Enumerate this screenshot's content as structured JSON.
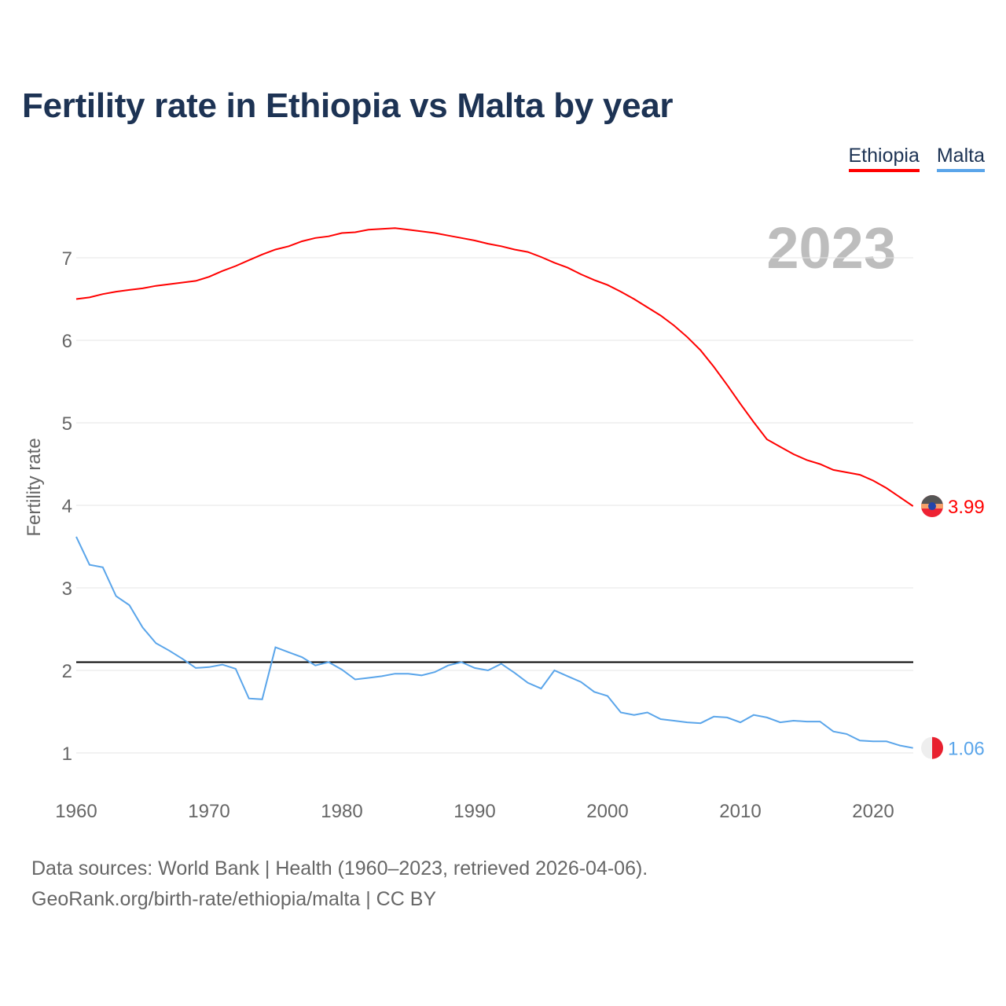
{
  "chart_data": {
    "type": "line",
    "title": "Fertility rate in Ethiopia vs Malta by year",
    "xlabel": "",
    "ylabel": "Fertility rate",
    "xlim": [
      1960,
      2023
    ],
    "ylim": [
      0.5,
      7.6
    ],
    "x_ticks": [
      1960,
      1970,
      1980,
      1990,
      2000,
      2010,
      2020
    ],
    "y_ticks": [
      1,
      2,
      3,
      4,
      5,
      6,
      7
    ],
    "grid": true,
    "legend_placement": "top-right",
    "current_year_label": "2023",
    "reference_line": {
      "value": 2.1,
      "color": "#000000"
    },
    "x": [
      1960,
      1961,
      1962,
      1963,
      1964,
      1965,
      1966,
      1967,
      1968,
      1969,
      1970,
      1971,
      1972,
      1973,
      1974,
      1975,
      1976,
      1977,
      1978,
      1979,
      1980,
      1981,
      1982,
      1983,
      1984,
      1985,
      1986,
      1987,
      1988,
      1989,
      1990,
      1991,
      1992,
      1993,
      1994,
      1995,
      1996,
      1997,
      1998,
      1999,
      2000,
      2001,
      2002,
      2003,
      2004,
      2005,
      2006,
      2007,
      2008,
      2009,
      2010,
      2011,
      2012,
      2013,
      2014,
      2015,
      2016,
      2017,
      2018,
      2019,
      2020,
      2021,
      2022,
      2023
    ],
    "series": [
      {
        "name": "Ethiopia",
        "color": "#ff0000",
        "end_label": "3.99",
        "values": [
          6.5,
          6.52,
          6.56,
          6.59,
          6.61,
          6.63,
          6.66,
          6.68,
          6.7,
          6.72,
          6.77,
          6.84,
          6.9,
          6.97,
          7.04,
          7.1,
          7.14,
          7.2,
          7.24,
          7.26,
          7.3,
          7.31,
          7.34,
          7.35,
          7.36,
          7.34,
          7.32,
          7.3,
          7.27,
          7.24,
          7.21,
          7.17,
          7.14,
          7.1,
          7.07,
          7.01,
          6.94,
          6.88,
          6.8,
          6.73,
          6.67,
          6.59,
          6.5,
          6.4,
          6.3,
          6.18,
          6.04,
          5.88,
          5.68,
          5.46,
          5.23,
          5.01,
          4.8,
          4.71,
          4.62,
          4.55,
          4.5,
          4.43,
          4.4,
          4.37,
          4.3,
          4.21,
          4.1,
          3.99
        ]
      },
      {
        "name": "Malta",
        "color": "#5aa5ea",
        "end_label": "1.06",
        "values": [
          3.62,
          3.28,
          3.25,
          2.9,
          2.79,
          2.52,
          2.33,
          2.24,
          2.14,
          2.03,
          2.04,
          2.07,
          2.02,
          1.66,
          1.65,
          2.28,
          2.22,
          2.16,
          2.06,
          2.1,
          2.01,
          1.89,
          1.91,
          1.93,
          1.96,
          1.96,
          1.94,
          1.98,
          2.06,
          2.1,
          2.03,
          2.0,
          2.08,
          1.97,
          1.85,
          1.78,
          2.0,
          1.93,
          1.86,
          1.74,
          1.69,
          1.49,
          1.46,
          1.49,
          1.41,
          1.39,
          1.37,
          1.36,
          1.44,
          1.43,
          1.37,
          1.46,
          1.43,
          1.37,
          1.39,
          1.38,
          1.38,
          1.26,
          1.23,
          1.15,
          1.14,
          1.14,
          1.09,
          1.06
        ]
      }
    ]
  },
  "footer": {
    "line1": "Data sources: World Bank | Health (1960–2023, retrieved 2026-04-06).",
    "line2": "GeoRank.org/birth-rate/ethiopia/malta | CC BY"
  }
}
